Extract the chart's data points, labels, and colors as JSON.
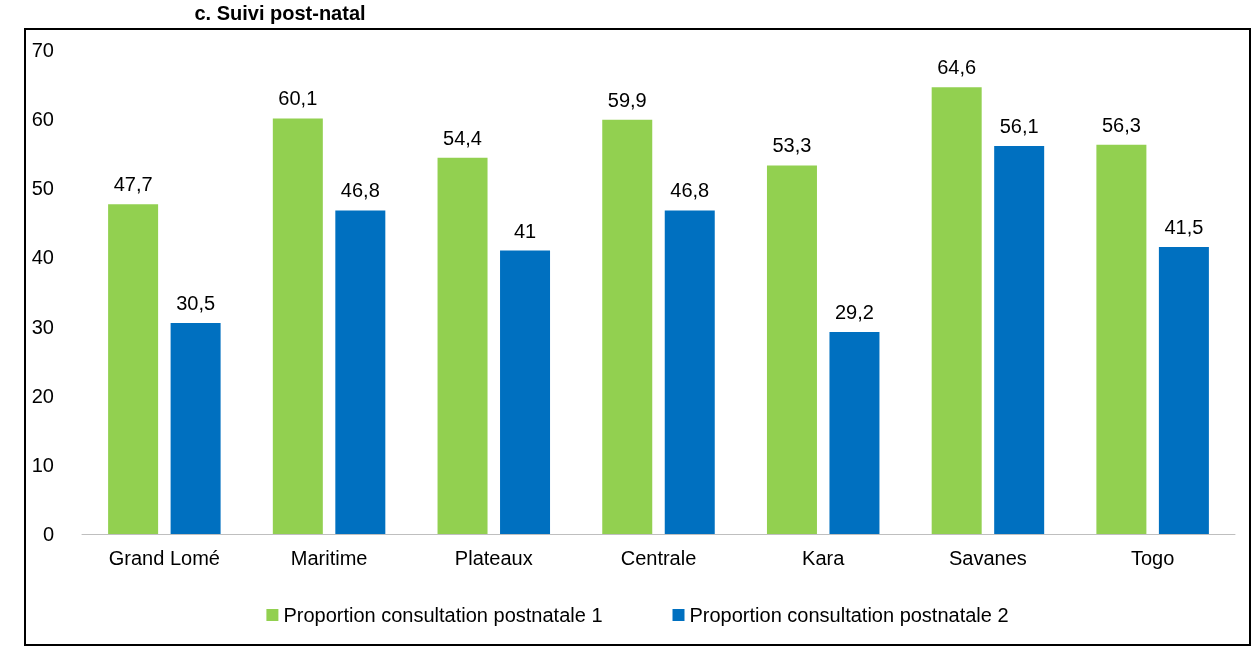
{
  "chart_data": {
    "type": "bar",
    "title": "c. Suivi post-natal",
    "categories": [
      "Grand Lomé",
      "Maritime",
      "Plateaux",
      "Centrale",
      "Kara",
      "Savanes",
      "Togo"
    ],
    "series": [
      {
        "name": "Proportion consultation postnatale 1",
        "color": "#92d050",
        "values": [
          47.7,
          60.1,
          54.4,
          59.9,
          53.3,
          64.6,
          56.3
        ],
        "value_labels": [
          "47,7",
          "60,1",
          "54,4",
          "59,9",
          "53,3",
          "64,6",
          "56,3"
        ]
      },
      {
        "name": "Proportion consultation postnatale 2",
        "color": "#0070c0",
        "values": [
          30.5,
          46.8,
          41,
          46.8,
          29.2,
          56.1,
          41.5
        ],
        "value_labels": [
          "30,5",
          "46,8",
          "41",
          "46,8",
          "29,2",
          "56,1",
          "41,5"
        ]
      }
    ],
    "ylim": [
      0,
      70
    ],
    "yticks": [
      0,
      10,
      20,
      30,
      40,
      50,
      60,
      70
    ],
    "grid": false,
    "legend": "bottom"
  }
}
